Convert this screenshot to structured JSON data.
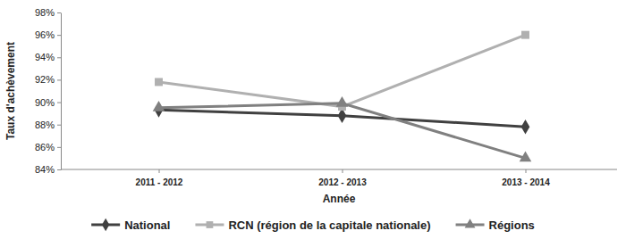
{
  "chart_data": {
    "type": "line",
    "x_label": "Année",
    "y_label": "Taux d'achèvement",
    "categories": [
      "2011 - 2012",
      "2012 - 2013",
      "2013 - 2014"
    ],
    "series": [
      {
        "name": "National",
        "color": "#404040",
        "marker": "diamond",
        "values": [
          89.3,
          88.8,
          87.8
        ]
      },
      {
        "name": "RCN (région de la capitale nationale)",
        "color": "#b0b0b0",
        "marker": "square",
        "values": [
          91.8,
          89.6,
          96.0
        ]
      },
      {
        "name": "Régions",
        "color": "#808080",
        "marker": "triangle",
        "values": [
          89.5,
          89.9,
          85.0
        ]
      }
    ],
    "ylim": [
      84,
      98
    ],
    "yticks": [
      {
        "value": 84,
        "label": "84%"
      },
      {
        "value": 86,
        "label": "86%"
      },
      {
        "value": 88,
        "label": "88%"
      },
      {
        "value": 90,
        "label": "90%"
      },
      {
        "value": 92,
        "label": "92%"
      },
      {
        "value": 94,
        "label": "94%"
      },
      {
        "value": 96,
        "label": "96%"
      },
      {
        "value": 98,
        "label": "98%"
      }
    ],
    "grid": false,
    "legend": "bottom"
  }
}
